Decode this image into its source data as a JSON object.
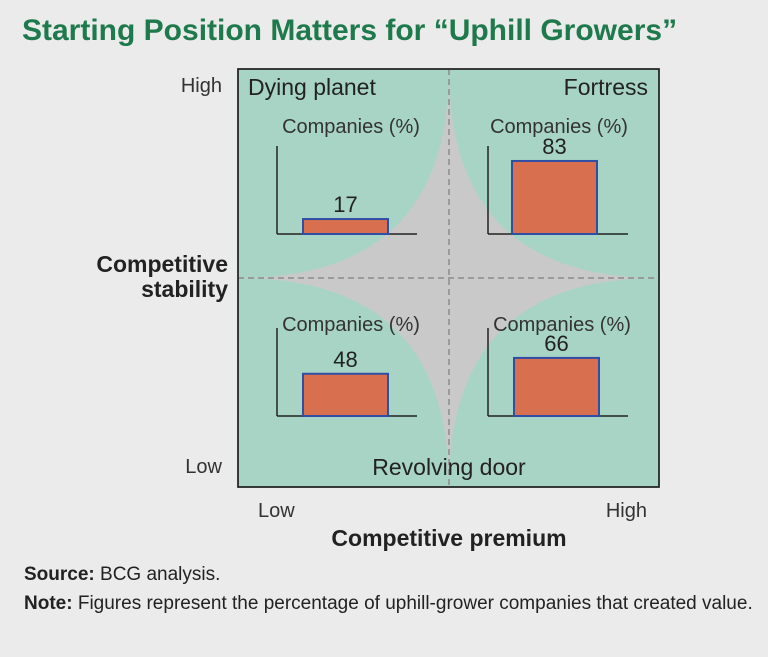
{
  "title": "Starting Position Matters for “Uphill Growers”",
  "colors": {
    "title": "#1e7a4c",
    "background": "#ebebeb",
    "quadrant": "#a8d4c5",
    "star": "#c9c9c9",
    "bar_fill": "#d8704f",
    "bar_stroke": "#2f4ea6"
  },
  "chart_data": {
    "type": "bar",
    "title": "Starting Position Matters for “Uphill Growers”",
    "xlabel": "Competitive premium",
    "ylabel_line1": "Competitive",
    "ylabel_line2": "stability",
    "x_low": "Low",
    "x_high": "High",
    "y_low": "Low",
    "y_high": "High",
    "ylim": [
      0,
      100
    ],
    "mini_axis_label": "Companies (%)",
    "quadrants": [
      {
        "name": "Dying planet",
        "position": "top-left",
        "value": 17
      },
      {
        "name": "Fortress",
        "position": "top-right",
        "value": 83
      },
      {
        "name": "",
        "position": "bottom-left",
        "value": 48
      },
      {
        "name": "",
        "position": "bottom-right",
        "value": 66
      }
    ],
    "bottom_label": "Revolving door"
  },
  "footer": {
    "source_label": "Source:",
    "source_text": "BCG analysis.",
    "note_label": "Note:",
    "note_text": "Figures represent the percentage of uphill-grower companies that created value."
  }
}
